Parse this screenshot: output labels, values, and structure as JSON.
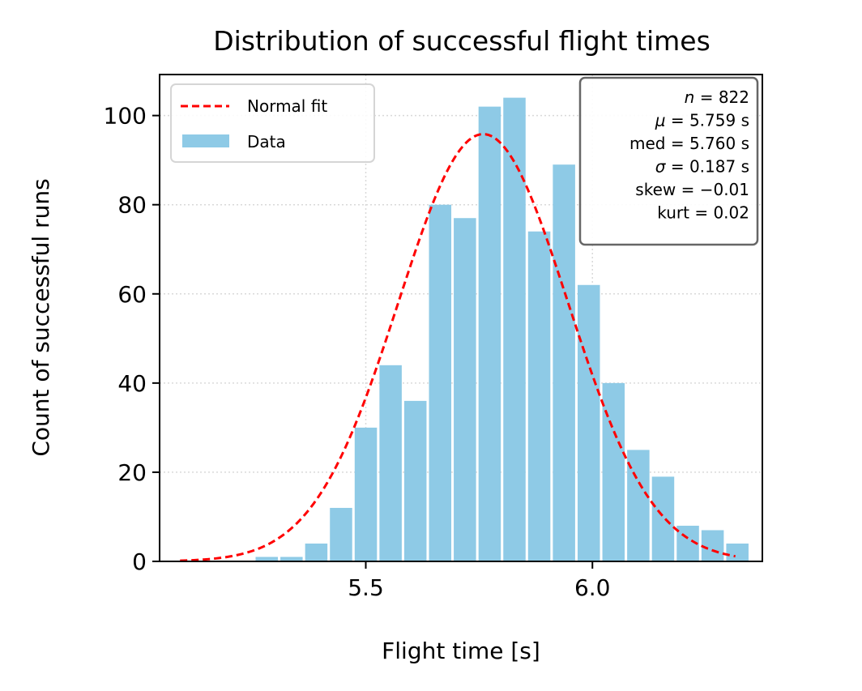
{
  "chart_data": {
    "type": "bar",
    "title": "Distribution of successful flight times",
    "xlabel": "Flight time [s]",
    "ylabel": "Count of successful runs",
    "xlim": [
      5.0451,
      6.3749
    ],
    "ylim": [
      0,
      109.2
    ],
    "xticks": [
      5.5,
      6.0
    ],
    "xtick_labels": [
      "5.5",
      "6.0"
    ],
    "yticks": [
      0,
      20,
      40,
      60,
      80,
      100
    ],
    "ytick_labels": [
      "0",
      "20",
      "40",
      "60",
      "80",
      "100"
    ],
    "grid": true,
    "bins": {
      "edges_start": 5.0902,
      "bin_width": 0.05465,
      "counts": [
        0,
        0,
        0,
        1,
        1,
        4,
        12,
        30,
        44,
        36,
        80,
        77,
        102,
        104,
        74,
        89,
        62,
        40,
        25,
        19,
        8,
        7,
        4
      ]
    },
    "fit": {
      "type": "normal",
      "mu": 5.759,
      "sigma": 0.187,
      "x_range": [
        5.0902,
        6.3154
      ]
    },
    "bar_color": "#8ecae6",
    "fit_color": "#ff0000",
    "legend": {
      "position": "top-left",
      "entries": [
        {
          "label": "Normal fit",
          "style": "dashed-line",
          "color": "#ff0000"
        },
        {
          "label": "Data",
          "style": "patch",
          "color": "#8ecae6"
        }
      ]
    },
    "stats_box": {
      "position": "top-right",
      "lines": [
        {
          "k": "n",
          "v": "822",
          "unit": "",
          "italic": true
        },
        {
          "k": "μ",
          "v": "5.759",
          "unit": "s",
          "italic": true
        },
        {
          "k": "med",
          "v": "5.760",
          "unit": "s",
          "italic": false
        },
        {
          "k": "σ",
          "v": "0.187",
          "unit": "s",
          "italic": true
        },
        {
          "k": "skew",
          "v": "−0.01",
          "unit": "",
          "italic": false
        },
        {
          "k": "kurt",
          "v": "0.02",
          "unit": "",
          "italic": false
        }
      ]
    }
  }
}
